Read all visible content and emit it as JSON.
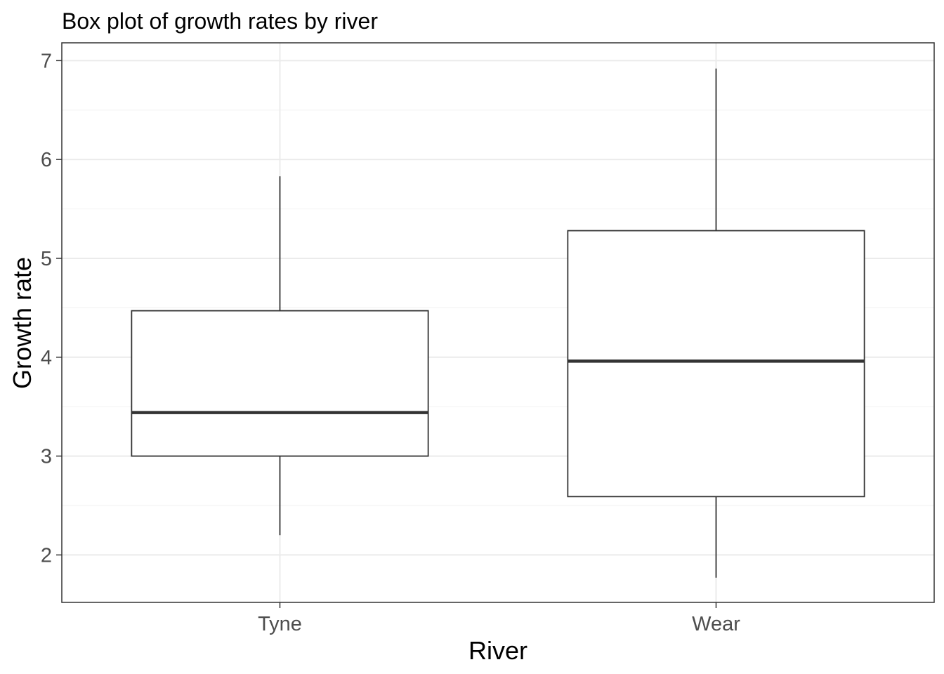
{
  "chart_data": {
    "type": "boxplot",
    "title": "Box plot of growth rates by river",
    "xlabel": "River",
    "ylabel": "Growth rate",
    "categories": [
      "Tyne",
      "Wear"
    ],
    "boxes": [
      {
        "category": "Tyne",
        "whisker_low": 2.2,
        "q1": 3.0,
        "median": 3.44,
        "q3": 4.47,
        "whisker_high": 5.83
      },
      {
        "category": "Wear",
        "whisker_low": 1.77,
        "q1": 2.59,
        "median": 3.96,
        "q3": 5.28,
        "whisker_high": 6.92
      }
    ],
    "ylim": [
      1.52,
      7.18
    ],
    "y_ticks": [
      2,
      3,
      4,
      5,
      6,
      7
    ],
    "y_minor_ticks": [
      2.5,
      3.5,
      4.5,
      5.5,
      6.5
    ],
    "y_tick_labels": [
      "2",
      "3",
      "4",
      "5",
      "6",
      "7"
    ],
    "grid": true,
    "legend": "none"
  },
  "colors": {
    "background": "#ffffff",
    "panel_border": "#333333",
    "grid_major": "#ebebeb",
    "grid_minor": "#f4f4f4",
    "box_outline": "#333333",
    "box_fill": "#ffffff",
    "tick_label": "#4d4d4d",
    "text": "#000000"
  }
}
